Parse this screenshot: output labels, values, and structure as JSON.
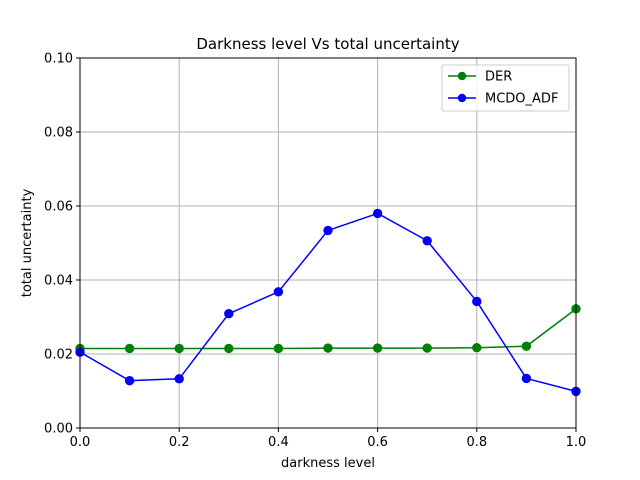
{
  "chart_data": {
    "type": "line",
    "title": "Darkness level Vs total uncertainty",
    "xlabel": "darkness level",
    "ylabel": "total uncertainty",
    "xlim": [
      0.0,
      1.0
    ],
    "ylim": [
      0.0,
      0.1
    ],
    "xticks": [
      "0.0",
      "0.2",
      "0.4",
      "0.6",
      "0.8",
      "1.0"
    ],
    "yticks": [
      "0.00",
      "0.02",
      "0.04",
      "0.06",
      "0.08",
      "0.10"
    ],
    "grid": true,
    "legend_position": "top-right",
    "x": [
      0.0,
      0.1,
      0.2,
      0.3,
      0.4,
      0.5,
      0.6,
      0.7,
      0.8,
      0.9,
      1.0
    ],
    "series": [
      {
        "name": "DER",
        "color": "#008000",
        "values": [
          0.0215,
          0.0215,
          0.0215,
          0.0215,
          0.0215,
          0.0216,
          0.0216,
          0.0216,
          0.0217,
          0.0221,
          0.0322
        ]
      },
      {
        "name": "MCDO_ADF",
        "color": "#0000ff",
        "values": [
          0.0205,
          0.0128,
          0.0133,
          0.0309,
          0.0368,
          0.0534,
          0.058,
          0.0506,
          0.0342,
          0.0134,
          0.0099
        ]
      }
    ]
  }
}
